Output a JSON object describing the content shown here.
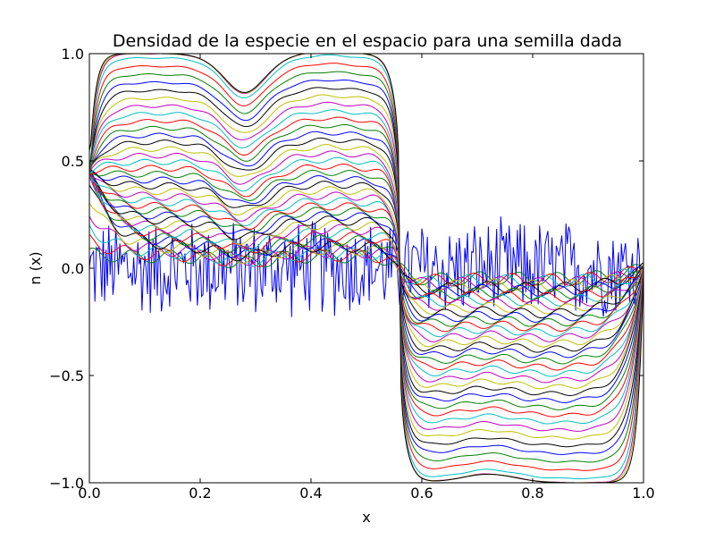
{
  "chart_data": {
    "type": "line",
    "title": "Densidad de la especie en el espacio para una semilla dada",
    "xlabel": "x",
    "ylabel": "n (x)",
    "xlim": [
      0.0,
      1.0
    ],
    "ylim": [
      -1.0,
      1.0
    ],
    "x_ticks": [
      {
        "value": 0.0,
        "label": "0.0"
      },
      {
        "value": 0.2,
        "label": "0.2"
      },
      {
        "value": 0.4,
        "label": "0.4"
      },
      {
        "value": 0.6,
        "label": "0.6"
      },
      {
        "value": 0.8,
        "label": "0.8"
      },
      {
        "value": 1.0,
        "label": "1.0"
      }
    ],
    "y_ticks": [
      {
        "value": -1.0,
        "label": "−1.0"
      },
      {
        "value": -0.5,
        "label": "−0.5"
      },
      {
        "value": 0.0,
        "label": "0.0"
      },
      {
        "value": 0.5,
        "label": "0.5"
      },
      {
        "value": 1.0,
        "label": "1.0"
      }
    ],
    "grid": false,
    "legend": "none",
    "color_cycle": [
      "#0000ff",
      "#008000",
      "#ff0000",
      "#00bfbf",
      "#bf00bf",
      "#bfbf00",
      "#000000"
    ],
    "noisy_initial_condition": {
      "color": "#0000ff",
      "x_sample": [
        0.0,
        0.05,
        0.1,
        0.15,
        0.2,
        0.25,
        0.3,
        0.35,
        0.4,
        0.45,
        0.5,
        0.55,
        0.6,
        0.65,
        0.7,
        0.75,
        0.8,
        0.85,
        0.9,
        0.95,
        1.0
      ],
      "y_sample": [
        0.0,
        0.1,
        -0.15,
        0.2,
        -0.1,
        0.25,
        -0.2,
        0.15,
        0.05,
        -0.12,
        0.22,
        0.1,
        -0.05,
        -0.25,
        0.3,
        0.05,
        -0.2,
        0.3,
        -0.2,
        0.25,
        0.0
      ],
      "amplitude": 0.25
    },
    "time_evolution": {
      "num_curves": 42,
      "description_of_trend": "profiles grow from noise toward a steady state near +1 on x < 0.56 and -1 on x > 0.56",
      "sign_change_x": 0.56,
      "dip_positions_x": [
        0.28,
        0.72
      ],
      "local_max_x": 0.43,
      "boundary_values": {
        "x0_start": 0.0,
        "x0_end": 0.5,
        "x1": 0.0
      }
    },
    "late_state_profile": {
      "x": [
        0.0,
        0.02,
        0.05,
        0.1,
        0.2,
        0.28,
        0.35,
        0.43,
        0.5,
        0.53,
        0.56,
        0.6,
        0.65,
        0.72,
        0.8,
        0.9,
        0.95,
        0.98,
        1.0
      ],
      "y": [
        0.55,
        0.85,
        0.97,
        1.0,
        1.0,
        0.99,
        1.0,
        1.0,
        0.97,
        0.6,
        0.0,
        -0.8,
        -0.98,
        -1.0,
        -1.0,
        -1.0,
        -0.97,
        -0.6,
        0.0
      ]
    }
  }
}
